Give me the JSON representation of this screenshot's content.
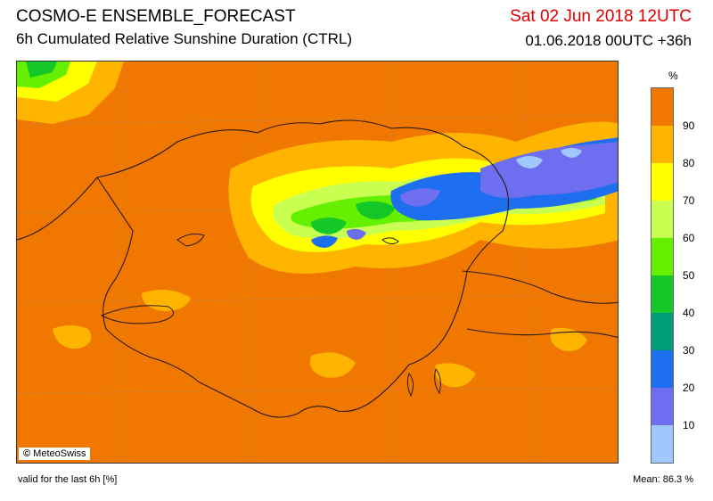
{
  "header": {
    "title": "COSMO-E ENSEMBLE_FORECAST",
    "subtitle": "6h Cumulated Relative Sunshine Duration (CTRL)",
    "valid_time": "Sat 02 Jun 2018 12UTC",
    "run_info": "01.06.2018 00UTC +36h"
  },
  "map": {
    "copyright": "MeteoSwiss",
    "copyright_icon": "copyright-icon"
  },
  "legend": {
    "unit": "%",
    "labels": [
      "90",
      "80",
      "70",
      "60",
      "50",
      "40",
      "30",
      "20",
      "10"
    ],
    "colors": {
      "90-100": "#f07800",
      "80-90": "#ffb400",
      "70-80": "#ffff00",
      "60-70": "#c8ff50",
      "50-60": "#64f000",
      "40-50": "#14c828",
      "30-40": "#009c78",
      "20-30": "#1e6ef0",
      "10-20": "#6e6ef0",
      "0-10": "#a0c8ff"
    }
  },
  "footer": {
    "valid_note": "valid for the last 6h [%]",
    "mean": "Mean:  86.3 %"
  }
}
